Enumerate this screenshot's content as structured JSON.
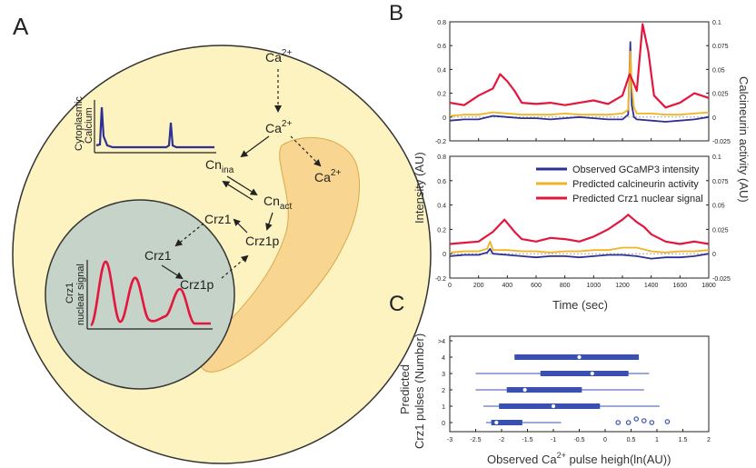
{
  "panels": {
    "a": "A",
    "b": "B",
    "c": "C"
  },
  "colors": {
    "cell_fill": "#fdf3c1",
    "nucleus_fill": "#c5d3c8",
    "er_fill": "#f9d592",
    "gcamp": "#2e3192",
    "calcineurin": "#f0b323",
    "crz1": "#e3173e",
    "box_plot": "#3a50b0"
  },
  "diagram_a": {
    "ca_top": {
      "main": "Ca",
      "sup": "2+"
    },
    "ca_mid": {
      "main": "Ca",
      "sup": "2+"
    },
    "ca_er": {
      "main": "Ca",
      "sup": "2+"
    },
    "cn_ina": {
      "main": "Cn",
      "sub": "ina"
    },
    "cn_act": {
      "main": "Cn",
      "sub": "act"
    },
    "crz1_cyto": "Crz1",
    "crz1p_cyto": "Crz1p",
    "crz1_nuc": "Crz1",
    "crz1p_nuc": "Crz1p",
    "inset_cyto_label_1": "Cytoplasmic",
    "inset_cyto_label_2": "Calcium",
    "inset_nuc_label_1": "Crz1",
    "inset_nuc_label_2": "nuclear signal"
  },
  "panel_b": {
    "left_axis_label": "Intensity (AU)",
    "right_axis_label": "Calcineurin activity (AU)",
    "x_label": "Time (sec)",
    "legend": [
      "Observed GCaMP3 intensity",
      "Predicted calcineurin activity",
      "Predicted Crz1 nuclear signal"
    ]
  },
  "panel_c": {
    "y_label_1": "Predicted",
    "y_label_2": "Crz1 pulses (Number)",
    "x_label_pre": "Observed  Ca",
    "x_label_sup": "2+",
    "x_label_post": " pulse heigh(ln(AU))"
  },
  "chart_data": [
    {
      "type": "line",
      "panel": "B-top",
      "xlim": [
        0,
        1800
      ],
      "ylim": [
        -0.2,
        0.8
      ],
      "y2lim": [
        -0.025,
        0.1
      ],
      "x_ticks": [
        0,
        200,
        400,
        600,
        800,
        1000,
        1200,
        1400,
        1600,
        1800
      ],
      "y_ticks": [
        "-0.2",
        "0",
        "0.2",
        "0.4",
        "0.6",
        "0.8"
      ],
      "y2_ticks": [
        "-0.025",
        "0",
        "0.025",
        "0.05",
        "0.075",
        "0.1"
      ],
      "series": [
        {
          "name": "Observed GCaMP3 intensity",
          "x": [
            0,
            100,
            200,
            300,
            400,
            500,
            600,
            700,
            800,
            900,
            1000,
            1100,
            1200,
            1240,
            1255,
            1265,
            1280,
            1300,
            1400,
            1500,
            1600,
            1700,
            1800
          ],
          "y": [
            -0.03,
            -0.02,
            -0.02,
            0.01,
            0.0,
            -0.01,
            -0.01,
            -0.02,
            -0.01,
            0.0,
            -0.01,
            -0.02,
            -0.02,
            0.02,
            0.63,
            0.1,
            0.0,
            -0.02,
            -0.03,
            -0.04,
            -0.03,
            -0.02,
            0.0
          ]
        },
        {
          "name": "Predicted calcineurin activity",
          "x": [
            0,
            100,
            200,
            300,
            400,
            500,
            600,
            700,
            800,
            900,
            1000,
            1100,
            1200,
            1240,
            1255,
            1265,
            1280,
            1300,
            1400,
            1500,
            1600,
            1700,
            1800
          ],
          "y": [
            0.01,
            0.02,
            0.02,
            0.04,
            0.03,
            0.02,
            0.02,
            0.02,
            0.03,
            0.02,
            0.02,
            0.02,
            0.03,
            0.06,
            0.55,
            0.25,
            0.08,
            0.03,
            0.03,
            0.02,
            0.02,
            0.03,
            0.04
          ]
        },
        {
          "name": "Predicted Crz1 nuclear signal",
          "x": [
            0,
            100,
            200,
            300,
            350,
            400,
            450,
            500,
            600,
            700,
            800,
            900,
            1000,
            1100,
            1200,
            1250,
            1280,
            1300,
            1340,
            1380,
            1420,
            1500,
            1600,
            1700,
            1800
          ],
          "y": [
            0.12,
            0.1,
            0.18,
            0.24,
            0.36,
            0.3,
            0.22,
            0.12,
            0.11,
            0.12,
            0.1,
            0.12,
            0.14,
            0.11,
            0.18,
            0.36,
            0.28,
            0.22,
            0.78,
            0.55,
            0.18,
            0.08,
            0.12,
            0.2,
            0.16
          ]
        }
      ]
    },
    {
      "type": "line",
      "panel": "B-bottom",
      "xlim": [
        0,
        1800
      ],
      "ylim": [
        -0.2,
        0.8
      ],
      "y2lim": [
        -0.025,
        0.1
      ],
      "x_ticks": [
        0,
        200,
        400,
        600,
        800,
        1000,
        1200,
        1400,
        1600,
        1800
      ],
      "y_ticks": [
        "-0.2",
        "0",
        "0.2",
        "0.4",
        "0.6",
        "0.8"
      ],
      "y2_ticks": [
        "-0.025",
        "0",
        "0.025",
        "0.05",
        "0.075",
        "0.1"
      ],
      "series": [
        {
          "name": "Observed GCaMP3 intensity",
          "x": [
            0,
            100,
            200,
            260,
            280,
            300,
            400,
            500,
            600,
            700,
            800,
            900,
            1000,
            1100,
            1200,
            1300,
            1400,
            1500,
            1600,
            1700,
            1800
          ],
          "y": [
            -0.02,
            -0.01,
            -0.01,
            0.01,
            0.04,
            0.0,
            -0.01,
            -0.02,
            -0.03,
            -0.02,
            -0.02,
            -0.03,
            -0.02,
            -0.01,
            -0.01,
            -0.02,
            -0.04,
            -0.03,
            -0.03,
            -0.02,
            0.0
          ]
        },
        {
          "name": "Predicted calcineurin activity",
          "x": [
            0,
            100,
            200,
            260,
            280,
            300,
            400,
            500,
            600,
            700,
            800,
            900,
            1000,
            1100,
            1200,
            1300,
            1400,
            1500,
            1600,
            1700,
            1800
          ],
          "y": [
            0.01,
            0.02,
            0.02,
            0.04,
            0.1,
            0.03,
            0.03,
            0.02,
            0.02,
            0.01,
            0.02,
            0.02,
            0.03,
            0.03,
            0.05,
            0.05,
            0.02,
            0.01,
            0.02,
            0.02,
            0.03
          ]
        },
        {
          "name": "Predicted Crz1 nuclear signal",
          "x": [
            0,
            100,
            200,
            300,
            380,
            450,
            500,
            600,
            700,
            800,
            900,
            1000,
            1100,
            1200,
            1240,
            1300,
            1350,
            1400,
            1500,
            1600,
            1700,
            1800
          ],
          "y": [
            0.08,
            0.09,
            0.1,
            0.18,
            0.28,
            0.18,
            0.12,
            0.1,
            0.13,
            0.12,
            0.1,
            0.14,
            0.2,
            0.28,
            0.32,
            0.26,
            0.22,
            0.16,
            0.1,
            0.08,
            0.1,
            0.08
          ]
        }
      ]
    },
    {
      "type": "box",
      "panel": "C",
      "xlim": [
        -3,
        2
      ],
      "x_ticks": [
        "-3",
        "-2.5",
        "-2",
        "-1.5",
        "-1",
        "-0.5",
        "0",
        "0.5",
        "1",
        "1.5",
        "2"
      ],
      "y_ticks": [
        "0",
        "1",
        "2",
        "3",
        "4",
        ">4"
      ],
      "boxes": [
        {
          "row": 4,
          "min": -1.75,
          "q1": -1.75,
          "median": -0.5,
          "q3": 0.65,
          "max": 0.65
        },
        {
          "row": 3,
          "min": -2.5,
          "q1": -1.25,
          "median": -0.25,
          "q3": 0.45,
          "max": 0.85
        },
        {
          "row": 2,
          "min": -2.5,
          "q1": -1.9,
          "median": -1.55,
          "q3": -0.45,
          "max": 0.75
        },
        {
          "row": 1,
          "min": -2.35,
          "q1": -2.05,
          "median": -1.0,
          "q3": -0.1,
          "max": 1.05
        },
        {
          "row": 0,
          "min": -2.3,
          "q1": -2.2,
          "median": -2.1,
          "q3": -1.6,
          "max": -0.85
        }
      ],
      "outliers_row0": [
        0.25,
        0.45,
        0.6,
        0.75,
        0.9,
        1.2
      ]
    }
  ]
}
